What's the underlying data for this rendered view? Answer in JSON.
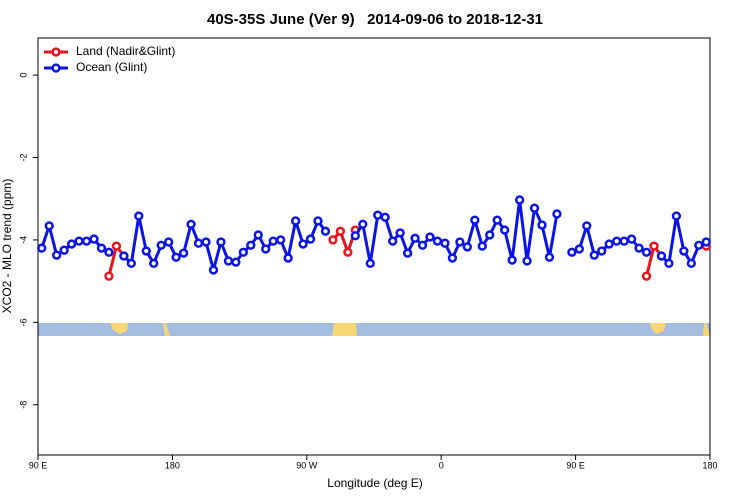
{
  "chart_data": {
    "type": "line",
    "title": "40S-35S June (Ver 9)   2014-09-06 to 2018-12-31",
    "x_label": "Longitude (deg E)",
    "y_label": "XCO2 - MLO trend (ppm)",
    "x": [
      92.5,
      97.5,
      102.5,
      107.5,
      112.5,
      117.5,
      122.5,
      127.5,
      132.5,
      137.5,
      142.5,
      147.5,
      152.5,
      157.5,
      162.5,
      167.5,
      172.5,
      177.5,
      182.5,
      187.5,
      192.5,
      197.5,
      202.5,
      207.5,
      212.5,
      217.5,
      222.5,
      227.5,
      232.5,
      237.5,
      242.5,
      247.5,
      252.5,
      257.5,
      262.5,
      267.5,
      272.5,
      277.5,
      282.5,
      287.5,
      292.5,
      297.5,
      302.5,
      307.5,
      312.5,
      317.5,
      322.5,
      327.5,
      332.5,
      337.5,
      342.5,
      347.5,
      352.5,
      357.5,
      362.5,
      367.5,
      372.5,
      377.5,
      382.5,
      387.5,
      392.5,
      397.5,
      402.5,
      407.5,
      412.5,
      417.5,
      422.5,
      427.5,
      432.5,
      437.5,
      442.5,
      447.5,
      452.5,
      457.5,
      462.5,
      467.5,
      472.5,
      477.5,
      482.5,
      487.5,
      492.5,
      497.5,
      502.5,
      507.5,
      512.5,
      517.5,
      522.5,
      527.5,
      532.5,
      537.5
    ],
    "series": [
      {
        "name": "Land (Nadir&Glint)",
        "color": "#e8141c",
        "values": [
          null,
          null,
          null,
          null,
          null,
          null,
          null,
          null,
          null,
          -4.88,
          -4.15,
          -4.39,
          null,
          null,
          null,
          null,
          null,
          null,
          null,
          null,
          null,
          null,
          null,
          null,
          null,
          null,
          null,
          null,
          null,
          null,
          null,
          null,
          null,
          null,
          null,
          null,
          null,
          null,
          null,
          -4.0,
          -3.79,
          -4.3,
          -3.76,
          null,
          null,
          null,
          null,
          null,
          null,
          null,
          null,
          null,
          null,
          null,
          null,
          null,
          null,
          null,
          null,
          null,
          null,
          null,
          null,
          null,
          null,
          null,
          null,
          null,
          null,
          null,
          null,
          null,
          null,
          null,
          null,
          null,
          null,
          null,
          null,
          null,
          null,
          -4.88,
          -4.15,
          -4.39,
          null,
          null,
          null,
          null,
          null,
          -4.15
        ]
      },
      {
        "name": "Ocean (Glint)",
        "color": "#0a14e6",
        "values": [
          -4.2,
          -3.66,
          -4.37,
          -4.25,
          -4.1,
          -4.03,
          -4.03,
          -3.98,
          -4.2,
          -4.3,
          null,
          -4.39,
          -4.57,
          -3.42,
          -4.27,
          -4.57,
          -4.13,
          -4.05,
          -4.42,
          -4.32,
          -3.62,
          -4.08,
          -4.05,
          -4.73,
          -4.05,
          -4.51,
          -4.54,
          -4.3,
          -4.13,
          -3.88,
          -4.22,
          -4.03,
          -4.0,
          -4.44,
          -3.54,
          -4.1,
          -3.98,
          -3.54,
          -3.79,
          null,
          null,
          null,
          -3.9,
          -3.62,
          -4.57,
          -3.4,
          -3.45,
          -4.03,
          -3.83,
          -4.32,
          -3.96,
          -4.13,
          -3.93,
          -4.03,
          -4.08,
          -4.44,
          -4.05,
          -4.17,
          -3.52,
          -4.15,
          -3.88,
          -3.52,
          -3.76,
          -4.49,
          -3.03,
          -4.51,
          -3.23,
          -3.64,
          -4.42,
          -3.37,
          null,
          -4.3,
          -4.22,
          -3.66,
          -4.37,
          -4.27,
          -4.1,
          -4.03,
          -4.03,
          -3.98,
          -4.2,
          -4.3,
          null,
          -4.39,
          -4.57,
          -3.42,
          -4.27,
          -4.57,
          -4.13,
          -4.05
        ]
      }
    ],
    "xlim": [
      90,
      540
    ],
    "ylim": [
      -9.22,
      0.9
    ],
    "xticks": [
      {
        "value": 90,
        "label": "90 E"
      },
      {
        "value": 180,
        "label": "180"
      },
      {
        "value": 270,
        "label": "90 W"
      },
      {
        "value": 360,
        "label": "0"
      },
      {
        "value": 450,
        "label": "90 E"
      },
      {
        "value": 540,
        "label": "180"
      }
    ],
    "yticks": [
      0,
      -2,
      -4,
      -6,
      -8
    ],
    "legend": "top-left"
  }
}
